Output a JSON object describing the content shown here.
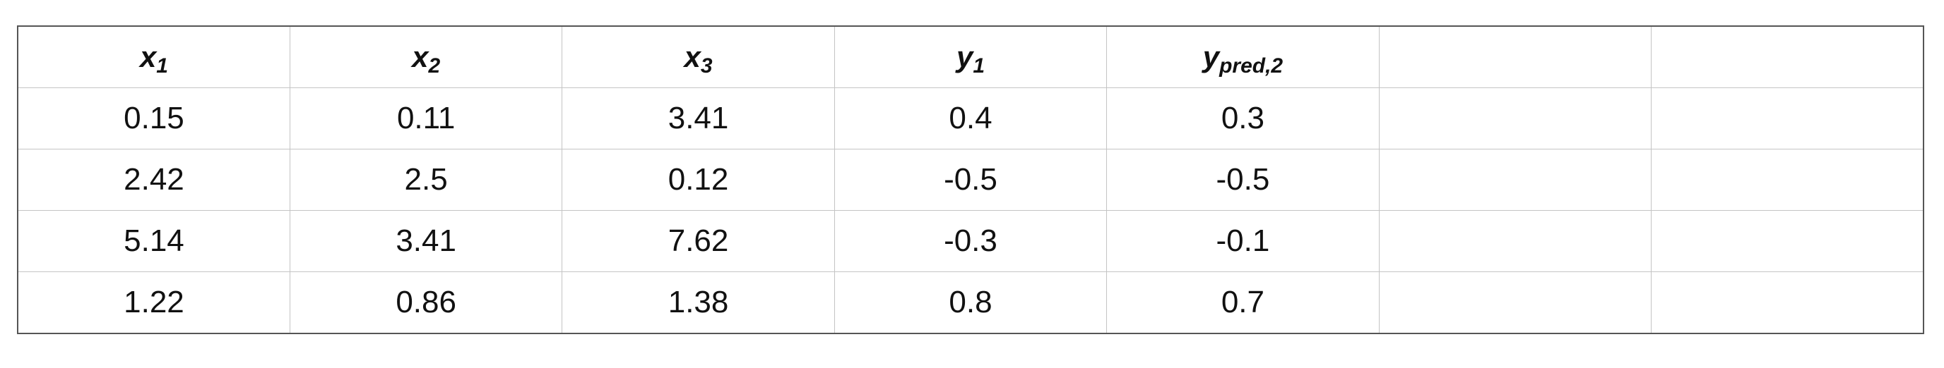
{
  "table": {
    "headers": [
      {
        "base": "x",
        "sub": "1"
      },
      {
        "base": "x",
        "sub": "2"
      },
      {
        "base": "x",
        "sub": "3"
      },
      {
        "base": "y",
        "sub": "1"
      },
      {
        "base": "y",
        "sub": "pred,2"
      },
      {
        "base": "",
        "sub": ""
      },
      {
        "base": "",
        "sub": ""
      }
    ],
    "rows": [
      [
        "0.15",
        "0.11",
        "3.41",
        "0.4",
        "0.3",
        "",
        ""
      ],
      [
        "2.42",
        "2.5",
        "0.12",
        "-0.5",
        "-0.5",
        "",
        ""
      ],
      [
        "5.14",
        "3.41",
        "7.62",
        "-0.3",
        "-0.1",
        "",
        ""
      ],
      [
        "1.22",
        "0.86",
        "1.38",
        "0.8",
        "0.7",
        "",
        ""
      ]
    ]
  }
}
